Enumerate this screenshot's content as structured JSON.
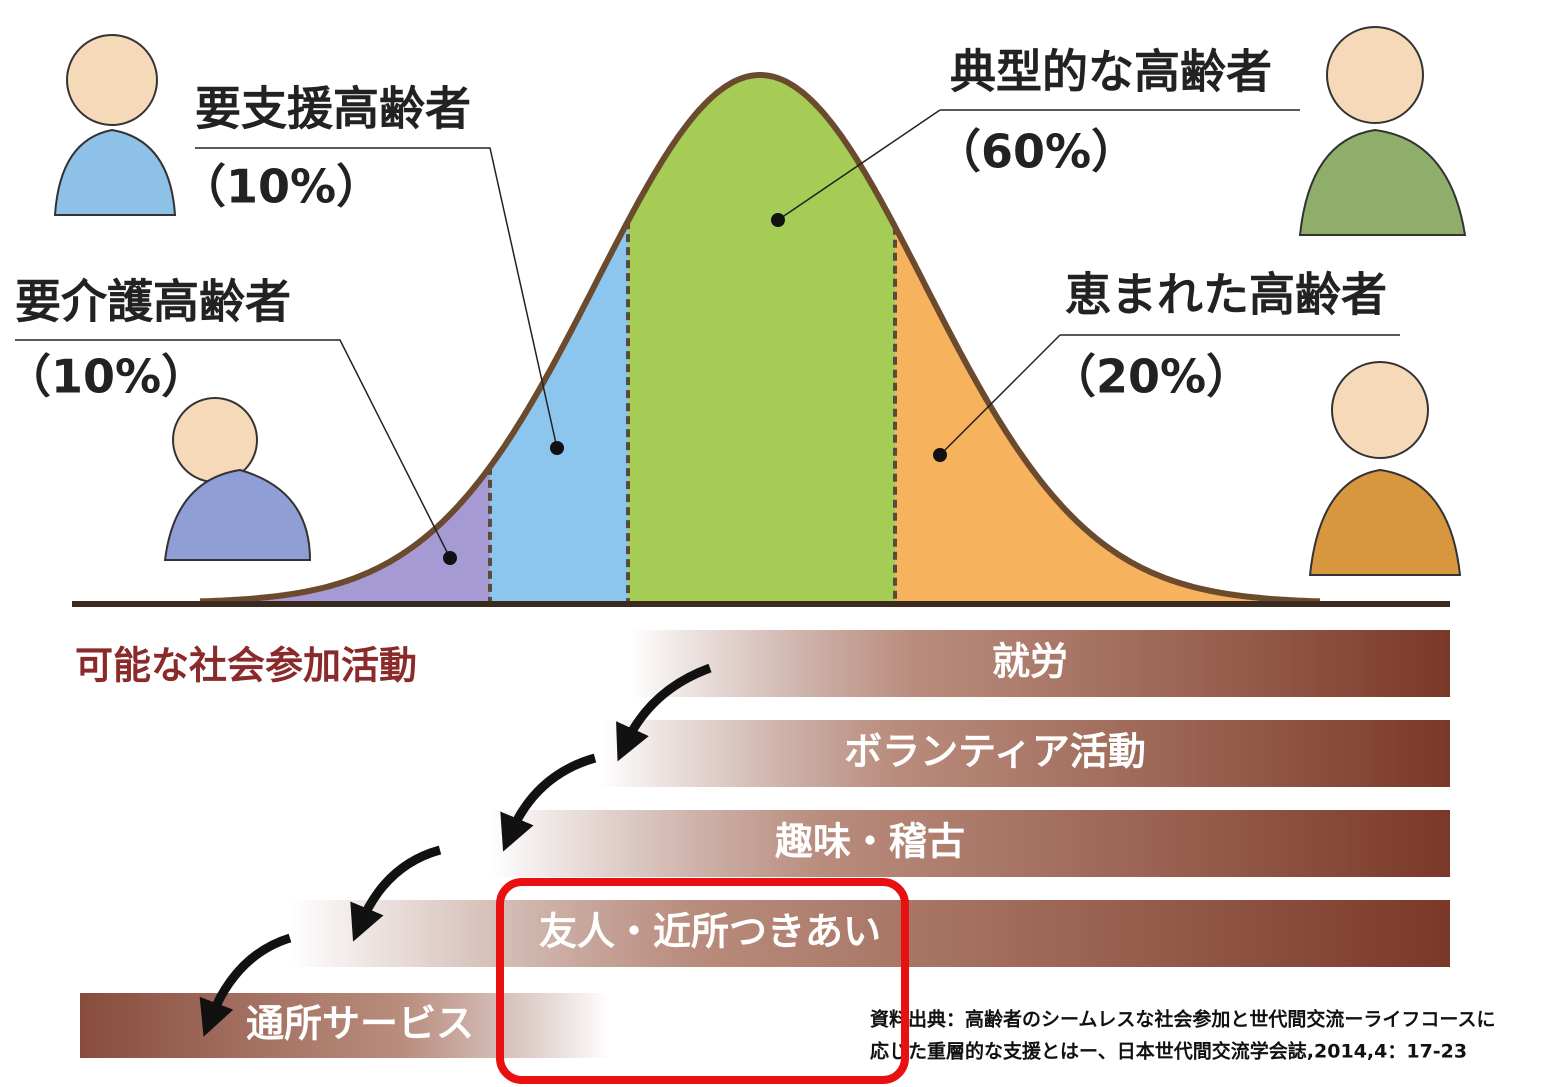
{
  "groups": [
    {
      "label": "要介護高齢者",
      "share": "（10%）"
    },
    {
      "label": "要支援高齢者",
      "share": "（10%）"
    },
    {
      "label": "典型的な高齢者",
      "share": "（60%）"
    },
    {
      "label": "恵まれた高齢者",
      "share": "（20%）"
    }
  ],
  "activities_title": "可能な社会参加活動",
  "activities": [
    "就労",
    "ボランティア活動",
    "趣味・稽古",
    "友人・近所つきあい",
    "通所サービス"
  ],
  "source": [
    "資料出典：高齢者のシームレスな社会参加と世代間交流ーライフコースに",
    "応じた重層的な支援とはー、日本世代間交流学会誌,2014,4：17-23"
  ]
}
